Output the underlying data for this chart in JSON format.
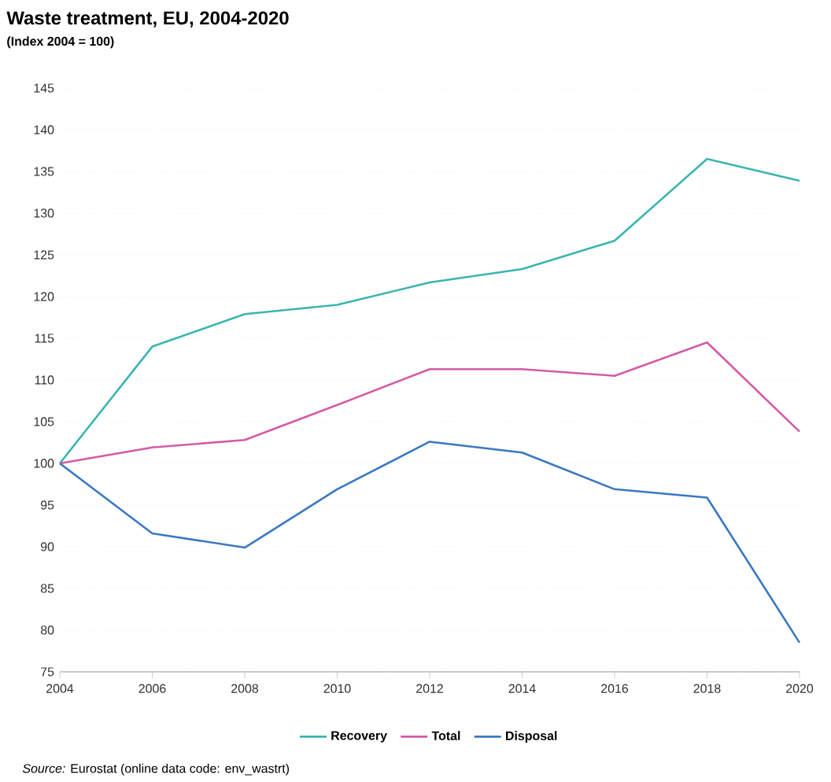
{
  "chart_data": {
    "type": "line",
    "title": "Waste treatment, EU, 2004-2020",
    "subtitle": "(Index 2004 = 100)",
    "x": [
      2004,
      2006,
      2008,
      2010,
      2012,
      2014,
      2016,
      2018,
      2020
    ],
    "series": [
      {
        "name": "Recovery",
        "color": "#3ab5b0",
        "values": [
          100,
          114,
          117.9,
          119,
          121.7,
          123.3,
          126.7,
          136.5,
          133.9
        ]
      },
      {
        "name": "Total",
        "color": "#d45ba5",
        "values": [
          100,
          101.9,
          102.8,
          107,
          111.3,
          111.3,
          110.5,
          114.5,
          103.8
        ]
      },
      {
        "name": "Disposal",
        "color": "#3a78c2",
        "values": [
          100,
          91.6,
          89.9,
          96.9,
          102.6,
          101.3,
          96.9,
          95.9,
          78.5
        ]
      }
    ],
    "xlim": [
      2004,
      2020
    ],
    "ylim": [
      75,
      145
    ],
    "xticks": [
      2004,
      2006,
      2008,
      2010,
      2012,
      2014,
      2016,
      2018,
      2020
    ],
    "yticks": [
      75,
      80,
      85,
      90,
      95,
      100,
      105,
      110,
      115,
      120,
      125,
      130,
      135,
      140,
      145
    ],
    "grid": "y",
    "legend": "bottom",
    "annotations": [
      "*Source:* Eurostat (online data code: env_wastrt)"
    ]
  }
}
